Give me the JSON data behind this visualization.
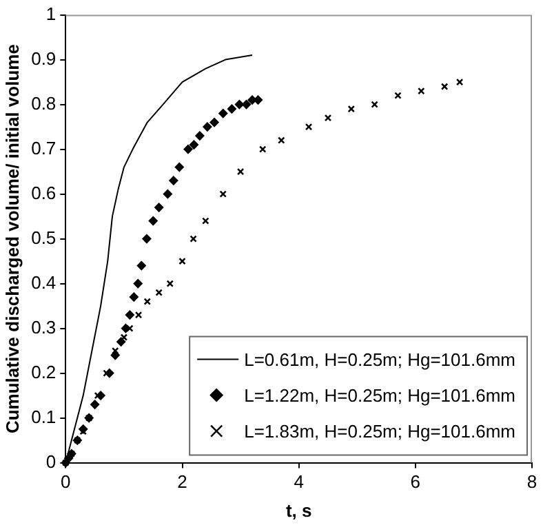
{
  "chart_data": {
    "type": "line",
    "xlabel": "t, s",
    "ylabel": "Cumulative discharged volume/ initial volume",
    "xlim": [
      0,
      8
    ],
    "xticks": [
      0,
      2,
      4,
      6,
      8
    ],
    "ylim": [
      0,
      1
    ],
    "yticks": [
      0,
      0.1,
      0.2,
      0.3,
      0.4,
      0.5,
      0.6,
      0.7,
      0.8,
      0.9,
      1
    ],
    "grid": false,
    "legend": "bottom right",
    "series": [
      {
        "name": "L=0.61m, H=0.25m; Hg=101.6mm",
        "color": "#000000",
        "marker": "none",
        "x": [
          0,
          0.3,
          0.6,
          0.72,
          0.8,
          0.9,
          1.0,
          1.15,
          1.4,
          1.67,
          2.0,
          2.4,
          2.74,
          3.2
        ],
        "values": [
          0,
          0.15,
          0.35,
          0.45,
          0.55,
          0.61,
          0.66,
          0.7,
          0.76,
          0.8,
          0.85,
          0.88,
          0.9,
          0.91
        ]
      },
      {
        "name": "L=1.22m, H=0.25m; Hg=101.6mm",
        "color": "#000000",
        "type": "scatter",
        "marker": "diamond",
        "x": [
          0,
          0.05,
          0.1,
          0.2,
          0.3,
          0.4,
          0.5,
          0.6,
          0.75,
          0.85,
          0.95,
          1.03,
          1.1,
          1.17,
          1.24,
          1.3,
          1.39,
          1.5,
          1.6,
          1.75,
          1.85,
          1.95,
          2.1,
          2.2,
          2.3,
          2.43,
          2.55,
          2.7,
          2.85,
          2.98,
          3.1,
          3.2,
          3.3
        ],
        "values": [
          0,
          0.01,
          0.02,
          0.05,
          0.075,
          0.1,
          0.13,
          0.15,
          0.2,
          0.24,
          0.27,
          0.3,
          0.33,
          0.37,
          0.4,
          0.44,
          0.5,
          0.54,
          0.57,
          0.6,
          0.63,
          0.66,
          0.7,
          0.71,
          0.73,
          0.75,
          0.76,
          0.78,
          0.79,
          0.8,
          0.8,
          0.81,
          0.81
        ]
      },
      {
        "name": "L=1.83m, H=0.25m; Hg=101.6mm",
        "color": "#000000",
        "type": "scatter",
        "marker": "cross",
        "x": [
          0,
          0.1,
          0.2,
          0.3,
          0.4,
          0.55,
          0.7,
          0.85,
          1.0,
          1.1,
          1.25,
          1.4,
          1.6,
          1.79,
          2.0,
          2.19,
          2.4,
          2.7,
          3.0,
          3.38,
          3.7,
          4.17,
          4.5,
          4.9,
          5.3,
          5.7,
          6.1,
          6.5,
          6.76
        ],
        "values": [
          0,
          0.02,
          0.05,
          0.07,
          0.1,
          0.15,
          0.2,
          0.25,
          0.28,
          0.3,
          0.33,
          0.36,
          0.38,
          0.4,
          0.45,
          0.5,
          0.54,
          0.6,
          0.65,
          0.7,
          0.72,
          0.75,
          0.77,
          0.79,
          0.8,
          0.82,
          0.83,
          0.84,
          0.85
        ]
      }
    ]
  }
}
